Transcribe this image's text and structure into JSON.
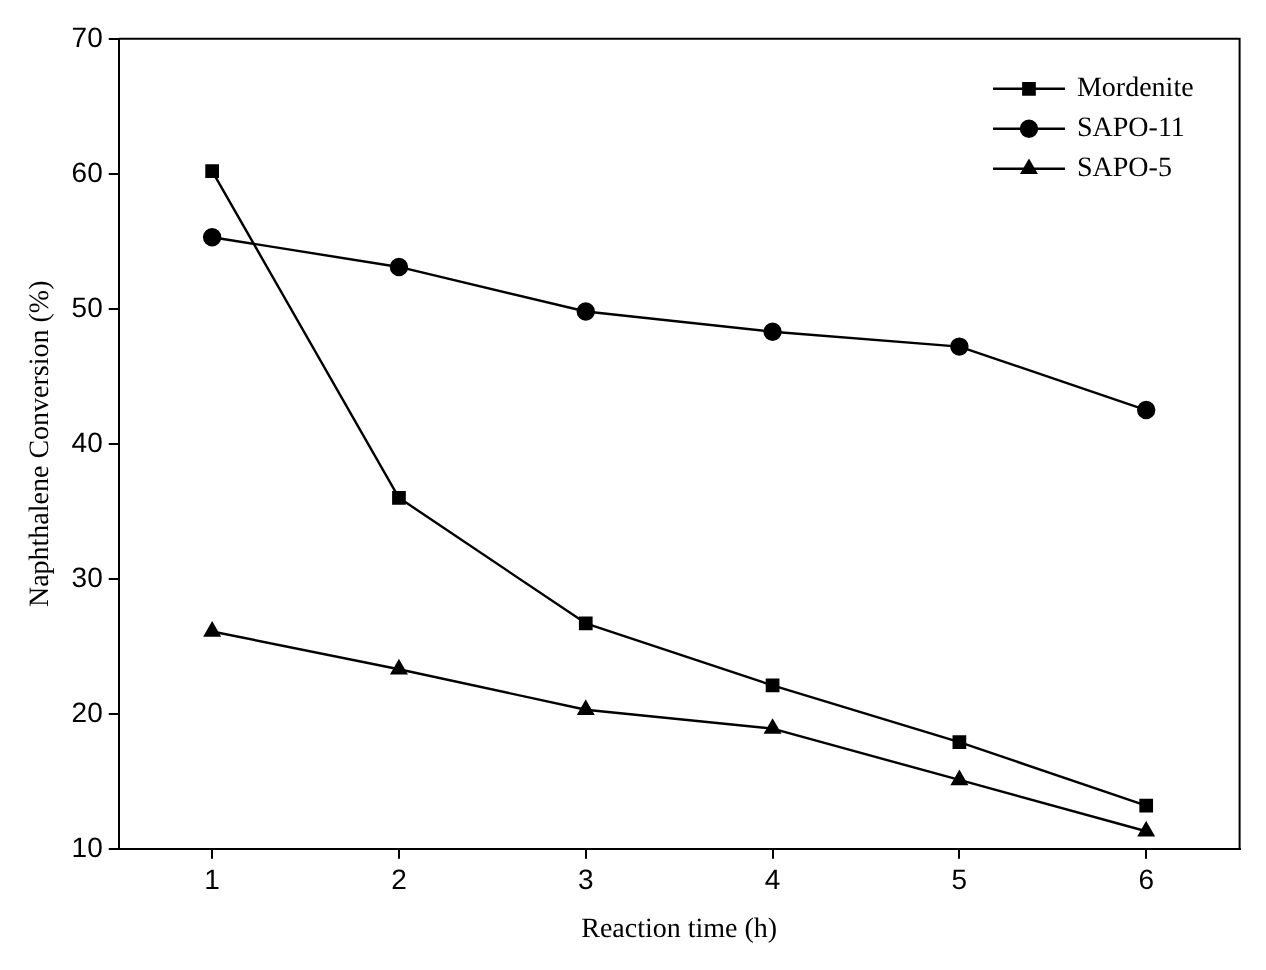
{
  "chart_data": {
    "type": "line",
    "xlabel": "Reaction time (h)",
    "ylabel": "Naphthalene Conversion (%)",
    "x": [
      1,
      2,
      3,
      4,
      5,
      6
    ],
    "xlim": [
      0.5,
      6.5
    ],
    "xticks": [
      1,
      2,
      3,
      4,
      5,
      6
    ],
    "ylim": [
      10,
      70
    ],
    "yticks": [
      10,
      20,
      30,
      40,
      50,
      60,
      70
    ],
    "grid": false,
    "legend": "top right",
    "line_style": "solid",
    "series": [
      {
        "name": "Mordenite",
        "color": "#000000",
        "marker": "square",
        "values": [
          60.2,
          36.0,
          26.7,
          22.1,
          17.9,
          13.2
        ]
      },
      {
        "name": "SAPO-11",
        "color": "#000000",
        "marker": "circle",
        "values": [
          55.3,
          53.1,
          49.8,
          48.3,
          47.2,
          42.5
        ]
      },
      {
        "name": "SAPO-5",
        "color": "#000000",
        "marker": "triangle",
        "values": [
          26.1,
          23.3,
          20.3,
          18.9,
          15.1,
          11.3
        ]
      }
    ]
  }
}
